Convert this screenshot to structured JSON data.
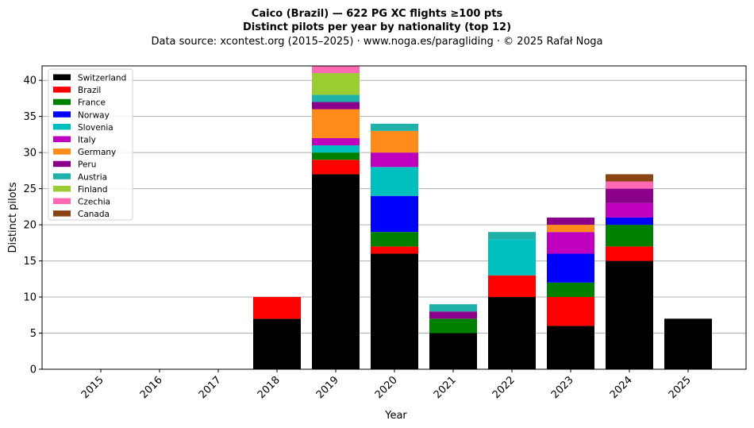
{
  "chart_data": {
    "type": "bar",
    "stacked": true,
    "title_line1": "Caico (Brazil)  —  622 PG XC flights ≥100 pts",
    "title_line2": "Distinct pilots per year by nationality (top 12)",
    "subtitle": "Data source: xcontest.org (2015–2025)  ·  www.noga.es/paragliding  ·  © 2025 Rafał Noga",
    "xlabel": "Year",
    "ylabel": "Distinct pilots",
    "ylim": [
      0,
      42
    ],
    "yticks": [
      0,
      5,
      10,
      15,
      20,
      25,
      30,
      35,
      40
    ],
    "grid": "horizontal",
    "legend_position": "top-left",
    "categories": [
      "2015",
      "2016",
      "2017",
      "2018",
      "2019",
      "2020",
      "2021",
      "2022",
      "2023",
      "2024",
      "2025"
    ],
    "series": [
      {
        "name": "Switzerland",
        "color": "#000000",
        "values": [
          0,
          0,
          0,
          7,
          27,
          16,
          5,
          10,
          6,
          15,
          7
        ]
      },
      {
        "name": "Brazil",
        "color": "#ff0000",
        "values": [
          0,
          0,
          0,
          3,
          2,
          1,
          0,
          3,
          4,
          2,
          0
        ]
      },
      {
        "name": "France",
        "color": "#008000",
        "values": [
          0,
          0,
          0,
          0,
          1,
          2,
          2,
          0,
          2,
          3,
          0
        ]
      },
      {
        "name": "Norway",
        "color": "#0000ff",
        "values": [
          0,
          0,
          0,
          0,
          0,
          5,
          0,
          0,
          4,
          1,
          0
        ]
      },
      {
        "name": "Slovenia",
        "color": "#00bfbf",
        "values": [
          0,
          0,
          0,
          0,
          1,
          4,
          0,
          5,
          0,
          0,
          0
        ]
      },
      {
        "name": "Italy",
        "color": "#bf00bf",
        "values": [
          0,
          0,
          0,
          0,
          1,
          2,
          0,
          0,
          3,
          2,
          0
        ]
      },
      {
        "name": "Germany",
        "color": "#ff8c1a",
        "values": [
          0,
          0,
          0,
          0,
          4,
          3,
          0,
          0,
          1,
          0,
          0
        ]
      },
      {
        "name": "Peru",
        "color": "#8b008b",
        "values": [
          0,
          0,
          0,
          0,
          1,
          0,
          1,
          0,
          1,
          2,
          0
        ]
      },
      {
        "name": "Austria",
        "color": "#20b2aa",
        "values": [
          0,
          0,
          0,
          0,
          1,
          1,
          1,
          1,
          0,
          0,
          0
        ]
      },
      {
        "name": "Finland",
        "color": "#9acd32",
        "values": [
          0,
          0,
          0,
          0,
          3,
          0,
          0,
          0,
          0,
          0,
          0
        ]
      },
      {
        "name": "Czechia",
        "color": "#ff69b4",
        "values": [
          0,
          0,
          0,
          0,
          1,
          0,
          0,
          0,
          0,
          1,
          0
        ]
      },
      {
        "name": "Canada",
        "color": "#8b4513",
        "values": [
          0,
          0,
          0,
          0,
          0,
          0,
          0,
          0,
          0,
          1,
          0
        ]
      }
    ]
  }
}
